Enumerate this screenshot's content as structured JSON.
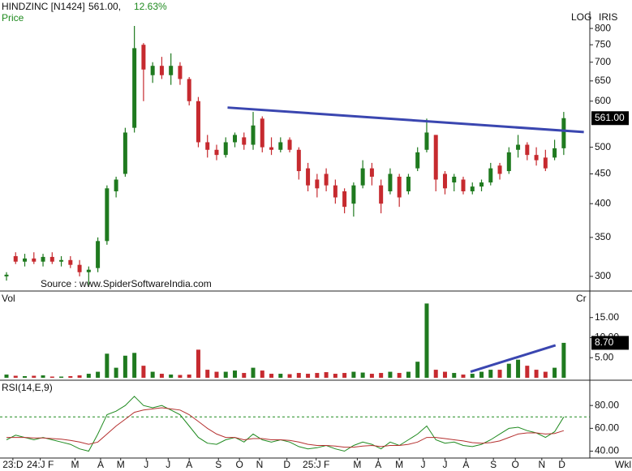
{
  "chart_data": [
    {
      "type": "candlestick",
      "title": "HINDZINC [N1424]",
      "price_text": "561.00,",
      "change_text": "12.63%",
      "ylabel": "Price",
      "scale_text": "LOG",
      "brand": "IRIS",
      "source": "Source : www.SpiderSoftwareIndia.com",
      "log": true,
      "up_color": "#1f7a1f",
      "down_color": "#c62a2f",
      "open": [
        300,
        325,
        318,
        322,
        318,
        324,
        318,
        320,
        314,
        305,
        310,
        345,
        420,
        450,
        540,
        750,
        665,
        690,
        665,
        690,
        655,
        600,
        510,
        495,
        485,
        510,
        520,
        505,
        560,
        500,
        495,
        515,
        495,
        460,
        440,
        450,
        430,
        420,
        400,
        430,
        460,
        430,
        420,
        445,
        420,
        460,
        495,
        525,
        450,
        435,
        440,
        420,
        428,
        435,
        465,
        455,
        495,
        505,
        485,
        480,
        480,
        498
      ],
      "high": [
        305,
        330,
        328,
        330,
        328,
        330,
        325,
        325,
        320,
        312,
        350,
        430,
        445,
        540,
        808,
        755,
        700,
        715,
        725,
        700,
        660,
        610,
        525,
        505,
        520,
        530,
        530,
        575,
        565,
        520,
        520,
        520,
        500,
        470,
        450,
        460,
        440,
        425,
        435,
        475,
        470,
        440,
        460,
        450,
        450,
        500,
        560,
        525,
        455,
        450,
        445,
        435,
        440,
        470,
        470,
        500,
        525,
        510,
        500,
        495,
        515,
        575
      ],
      "low": [
        295,
        315,
        312,
        315,
        312,
        315,
        312,
        310,
        300,
        290,
        305,
        340,
        410,
        445,
        530,
        600,
        645,
        655,
        640,
        640,
        590,
        500,
        480,
        475,
        480,
        500,
        495,
        495,
        490,
        485,
        490,
        490,
        440,
        420,
        410,
        420,
        400,
        385,
        380,
        425,
        430,
        385,
        415,
        395,
        415,
        455,
        490,
        420,
        415,
        420,
        415,
        415,
        420,
        430,
        440,
        450,
        480,
        475,
        465,
        455,
        475,
        485
      ],
      "close": [
        302,
        318,
        322,
        318,
        324,
        318,
        320,
        314,
        305,
        308,
        345,
        425,
        440,
        530,
        740,
        680,
        690,
        665,
        690,
        655,
        600,
        510,
        495,
        485,
        510,
        525,
        505,
        545,
        500,
        495,
        510,
        495,
        455,
        430,
        425,
        430,
        410,
        395,
        430,
        460,
        445,
        400,
        450,
        410,
        445,
        490,
        530,
        440,
        425,
        445,
        420,
        428,
        435,
        460,
        450,
        490,
        505,
        485,
        475,
        460,
        498,
        561
      ],
      "ylim": [
        284,
        856
      ],
      "yticks": [
        300,
        350,
        400,
        450,
        500,
        600,
        650,
        700,
        750,
        800
      ],
      "trendlines": [
        {
          "x": [
            24.2,
            63.2
          ],
          "values": [
            585,
            531
          ],
          "color": "#3a46b0"
        }
      ],
      "current": {
        "value": 561,
        "label": "561.00"
      }
    },
    {
      "type": "bar",
      "ylabel": "Vol",
      "unit": "Cr",
      "values": [
        0.8,
        0.5,
        0.4,
        0.5,
        0.6,
        0.3,
        0.3,
        0.4,
        0.6,
        1.0,
        1.5,
        6.0,
        2.5,
        5.5,
        6.2,
        3.0,
        1.5,
        1.0,
        0.8,
        0.7,
        0.8,
        7.0,
        2.0,
        1.5,
        1.5,
        1.8,
        1.2,
        2.5,
        1.8,
        1.0,
        1.0,
        0.9,
        1.2,
        1.0,
        1.2,
        1.4,
        1.0,
        1.2,
        1.5,
        1.3,
        1.0,
        1.2,
        1.5,
        1.2,
        1.5,
        4.0,
        18.5,
        2.0,
        1.5,
        1.2,
        0.8,
        1.0,
        1.5,
        2.0,
        2.0,
        3.5,
        4.5,
        3.0,
        2.0,
        1.5,
        2.5,
        8.7
      ],
      "ylim": [
        0,
        21
      ],
      "yticks": [
        {
          "value": 5,
          "label": "5.00"
        },
        {
          "value": 10,
          "label": "10.00"
        },
        {
          "value": 15,
          "label": "15.00"
        }
      ],
      "trendlines": [
        {
          "x": [
            50.8,
            60.1
          ],
          "values": [
            1.5,
            8.1
          ],
          "color": "#3a46b0"
        }
      ],
      "current": {
        "value": 8.7,
        "label": "8.70"
      }
    },
    {
      "type": "line",
      "ylabel": "RSI(14,E,9)",
      "period_text": "Wkl",
      "series": [
        {
          "color": "#1f8a1f",
          "values": [
            50,
            54,
            52,
            50,
            52,
            50,
            48,
            46,
            42,
            40,
            55,
            72,
            75,
            80,
            88,
            80,
            78,
            80,
            76,
            72,
            62,
            52,
            47,
            46,
            50,
            52,
            48,
            55,
            50,
            48,
            50,
            48,
            44,
            42,
            43,
            45,
            42,
            40,
            45,
            48,
            46,
            42,
            48,
            45,
            50,
            55,
            62,
            50,
            47,
            48,
            45,
            44,
            46,
            50,
            55,
            60,
            61,
            58,
            56,
            52,
            57,
            70
          ]
        },
        {
          "color": "#b5302f",
          "values": [
            52,
            52,
            52,
            51.5,
            51.5,
            51,
            50.5,
            49.5,
            48,
            46,
            48,
            55,
            62,
            68,
            74,
            76,
            77,
            78,
            77,
            76,
            72,
            66,
            60,
            55,
            52,
            52,
            50,
            51,
            51,
            50,
            50,
            49.5,
            48,
            46,
            45,
            45,
            44.5,
            43.5,
            43.5,
            44.5,
            45,
            44,
            45,
            45,
            46,
            48,
            52,
            52,
            51,
            50,
            49,
            47.5,
            47,
            47.5,
            49,
            52,
            55,
            56,
            56,
            55,
            55.5,
            58
          ]
        }
      ],
      "hline": 70,
      "hline_color": "#1f8a1f",
      "ylim": [
        34,
        100
      ],
      "yticks": [
        {
          "value": 40,
          "label": "40.00"
        },
        {
          "value": 60,
          "label": "60.00"
        },
        {
          "value": 80,
          "label": "80.00"
        }
      ],
      "xticks": [
        {
          "value": 0.7,
          "label": "23:D"
        },
        {
          "value": 3.7,
          "label": "24:J F"
        },
        {
          "value": 7.5,
          "label": "M"
        },
        {
          "value": 10.3,
          "label": "A"
        },
        {
          "value": 12.5,
          "label": "M"
        },
        {
          "value": 15.3,
          "label": "J"
        },
        {
          "value": 17.7,
          "label": "J"
        },
        {
          "value": 20,
          "label": "A"
        },
        {
          "value": 23.2,
          "label": "S"
        },
        {
          "value": 25.5,
          "label": "O"
        },
        {
          "value": 27.7,
          "label": "N"
        },
        {
          "value": 30.7,
          "label": "D"
        },
        {
          "value": 33.9,
          "label": "25:J F"
        },
        {
          "value": 38.4,
          "label": "M"
        },
        {
          "value": 40.7,
          "label": "A"
        },
        {
          "value": 43,
          "label": "M"
        },
        {
          "value": 45.6,
          "label": "J"
        },
        {
          "value": 48,
          "label": "J"
        },
        {
          "value": 50.3,
          "label": "A"
        },
        {
          "value": 53.3,
          "label": "S"
        },
        {
          "value": 55.7,
          "label": "O"
        },
        {
          "value": 58.6,
          "label": "N"
        },
        {
          "value": 60.8,
          "label": "D"
        }
      ]
    }
  ]
}
